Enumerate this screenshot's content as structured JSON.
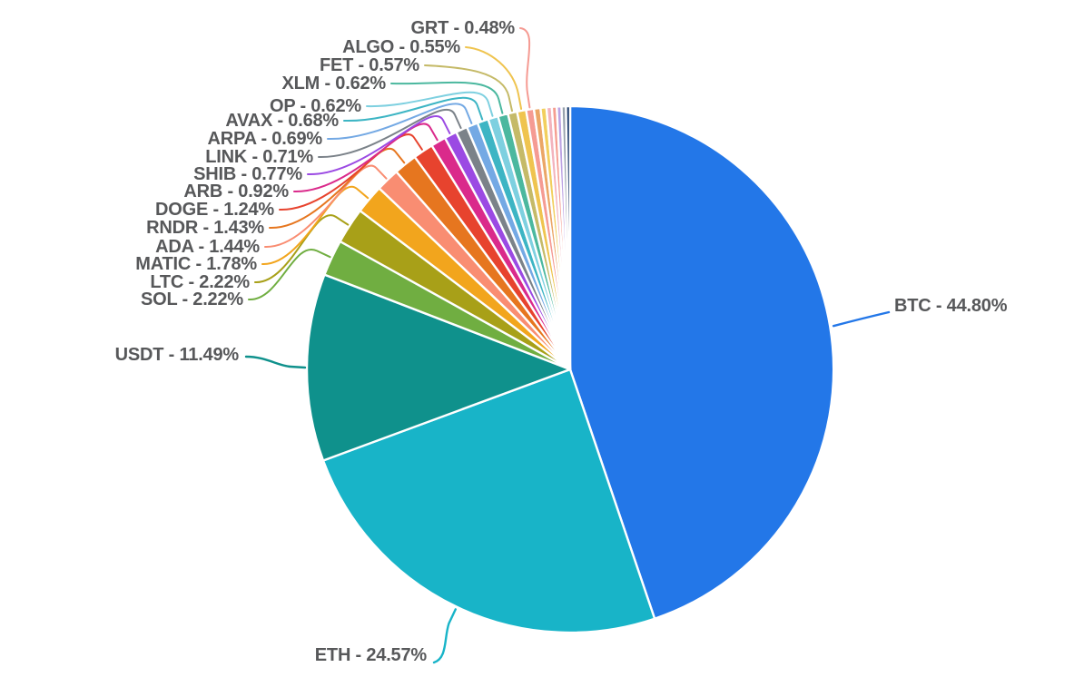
{
  "chart_data": {
    "type": "pie",
    "title": "",
    "legend_position": "none",
    "labels_style": "outside-with-leader-lines",
    "label_format": "{label} - {value}%",
    "label_color": "#57585a",
    "slice_border_color": "#ffffff",
    "background": "#ffffff",
    "start_angle_deg": 0,
    "direction": "clockwise",
    "series": [
      {
        "label": "BTC",
        "value": 44.8,
        "color": "#2377e8"
      },
      {
        "label": "ETH",
        "value": 24.57,
        "color": "#18b4c8"
      },
      {
        "label": "USDT",
        "value": 11.49,
        "color": "#0f918c"
      },
      {
        "label": "SOL",
        "value": 2.22,
        "color": "#70ae41"
      },
      {
        "label": "LTC",
        "value": 2.22,
        "color": "#a8a018"
      },
      {
        "label": "MATIC",
        "value": 1.78,
        "color": "#f2a51d"
      },
      {
        "label": "ADA",
        "value": 1.44,
        "color": "#f98d72"
      },
      {
        "label": "RNDR",
        "value": 1.43,
        "color": "#e6761f"
      },
      {
        "label": "DOGE",
        "value": 1.24,
        "color": "#e7432e"
      },
      {
        "label": "ARB",
        "value": 0.92,
        "color": "#da2a8b"
      },
      {
        "label": "SHIB",
        "value": 0.77,
        "color": "#9b4ae3"
      },
      {
        "label": "LINK",
        "value": 0.71,
        "color": "#7b8289"
      },
      {
        "label": "ARPA",
        "value": 0.69,
        "color": "#74a9e4"
      },
      {
        "label": "AVAX",
        "value": 0.68,
        "color": "#3db5c4"
      },
      {
        "label": "OP",
        "value": 0.62,
        "color": "#7ed0e0"
      },
      {
        "label": "XLM",
        "value": 0.62,
        "color": "#4bb89f"
      },
      {
        "label": "FET",
        "value": 0.57,
        "color": "#c5ba68"
      },
      {
        "label": "ALGO",
        "value": 0.55,
        "color": "#efc44f"
      },
      {
        "label": "GRT",
        "value": 0.48,
        "color": "#f59b93"
      },
      {
        "label": "",
        "value": 0.4,
        "color": "#eba666"
      },
      {
        "label": "",
        "value": 0.36,
        "color": "#f2cf5e"
      },
      {
        "label": "",
        "value": 0.33,
        "color": "#f3b3bd"
      },
      {
        "label": "",
        "value": 0.3,
        "color": "#f59d90"
      },
      {
        "label": "",
        "value": 0.29,
        "color": "#bda3e3"
      },
      {
        "label": "",
        "value": 0.27,
        "color": "#98a2ad"
      },
      {
        "label": "",
        "value": 0.25,
        "color": "#1f3e6e"
      }
    ]
  }
}
